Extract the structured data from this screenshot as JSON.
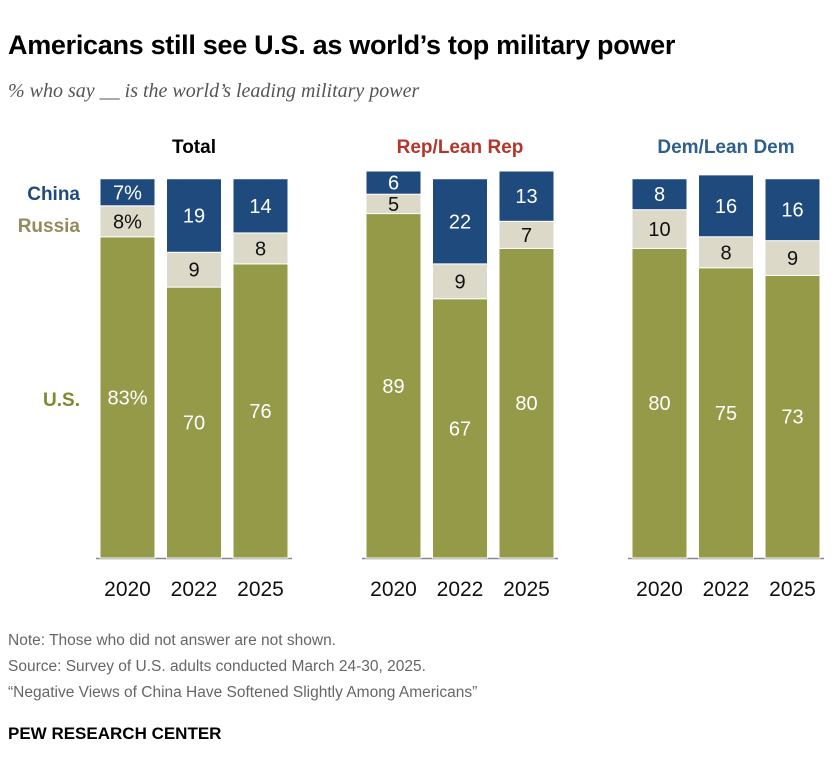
{
  "title": "Americans still see U.S. as world’s top military power",
  "subtitle": "% who say __ is the world’s leading military power",
  "notes": [
    "Note: Those who did not answer are not shown.",
    "Source: Survey of U.S. adults conducted March 24-30, 2025.",
    "“Negative Views of China Have Softened Slightly Among Americans”"
  ],
  "brand": "PEW RESEARCH CENTER",
  "chart_data": {
    "type": "bar",
    "stacked": true,
    "ylim": [
      0,
      100
    ],
    "categories": [
      "2020",
      "2022",
      "2025"
    ],
    "series_labels": [
      "U.S.",
      "Russia",
      "China"
    ],
    "colors": {
      "U.S.": "#949a48",
      "Russia": "#dcd9c8",
      "China": "#1f4a7d"
    },
    "label_colors": {
      "U.S.": "#7d8a2e",
      "Russia": "#948a5c",
      "China": "#1f4a7d"
    },
    "panels": [
      {
        "name": "Total",
        "color": "#000000",
        "series": [
          {
            "name": "U.S.",
            "values": [
              83,
              70,
              76
            ]
          },
          {
            "name": "Russia",
            "values": [
              8,
              9,
              8
            ]
          },
          {
            "name": "China",
            "values": [
              7,
              19,
              14
            ]
          }
        ]
      },
      {
        "name": "Rep/Lean Rep",
        "color": "#b5352b",
        "series": [
          {
            "name": "U.S.",
            "values": [
              89,
              67,
              80
            ]
          },
          {
            "name": "Russia",
            "values": [
              5,
              9,
              7
            ]
          },
          {
            "name": "China",
            "values": [
              6,
              22,
              13
            ]
          }
        ]
      },
      {
        "name": "Dem/Lean Dem",
        "color": "#2d5f8a",
        "series": [
          {
            "name": "U.S.",
            "values": [
              80,
              75,
              73
            ]
          },
          {
            "name": "Russia",
            "values": [
              10,
              8,
              9
            ]
          },
          {
            "name": "China",
            "values": [
              8,
              16,
              16
            ]
          }
        ]
      }
    ]
  }
}
